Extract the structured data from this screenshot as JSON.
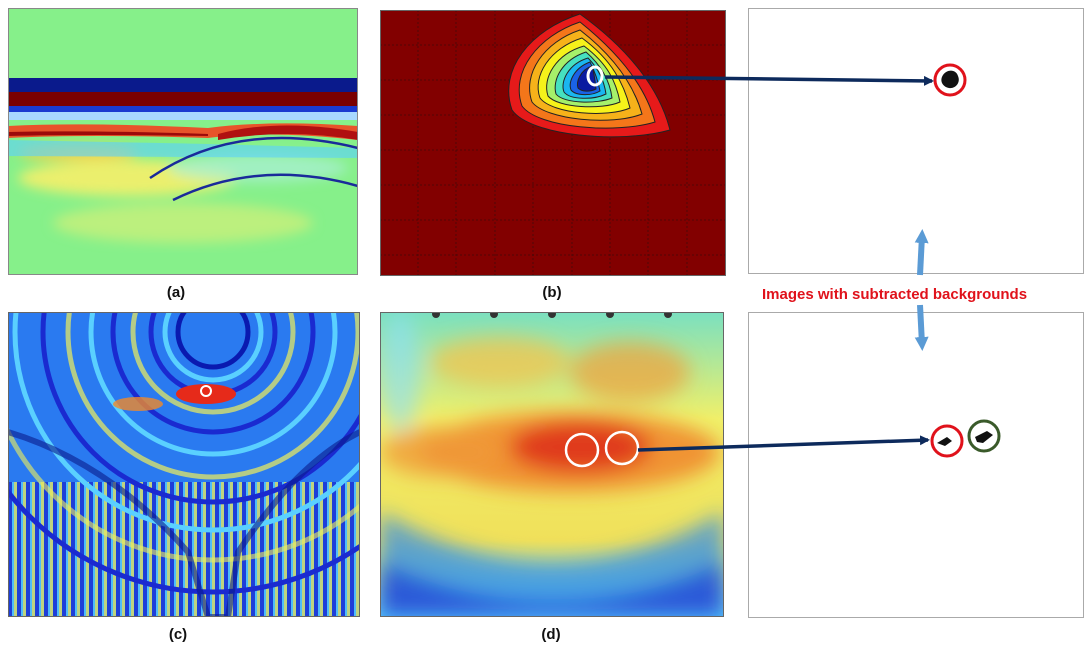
{
  "panels": {
    "a": {
      "caption": "(a)"
    },
    "b": {
      "caption": "(b)"
    },
    "c": {
      "caption": "(c)"
    },
    "d": {
      "caption": "(d)"
    }
  },
  "annotation": {
    "text": "Images with subtracted backgrounds",
    "color": "#e0121b"
  },
  "colors": {
    "arrow": "#0d2a5c",
    "double_arrow": "#5b9bd5",
    "target_circle": "#e0121b",
    "extra_circle": "#3a5a2a",
    "highlight_circle": "#ffffff"
  }
}
